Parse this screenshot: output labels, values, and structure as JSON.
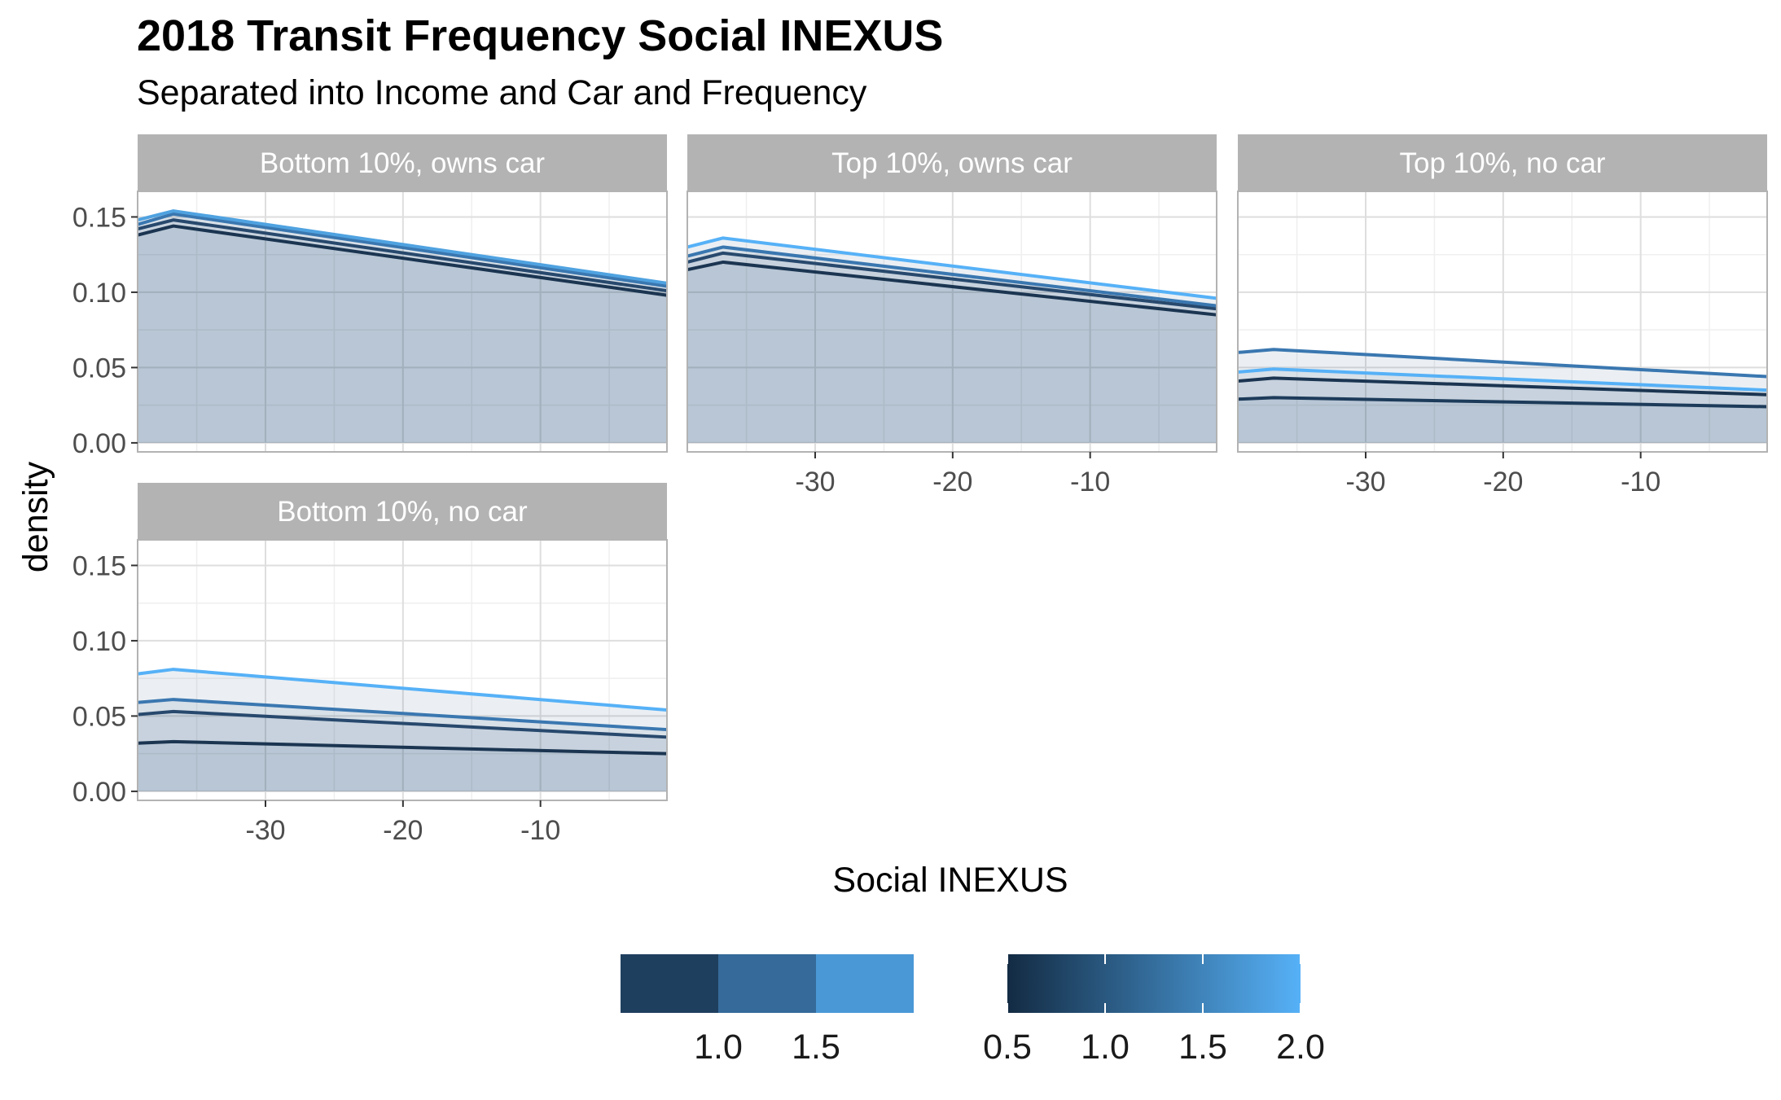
{
  "chart_data": {
    "type": "area",
    "title": "2018 Transit Frequency Social INEXUS",
    "subtitle": "Separated into Income and Car and Frequency",
    "xlabel": "Social INEXUS",
    "ylabel": "density",
    "xlim": [
      -39.3,
      -0.8
    ],
    "ylim": [
      -0.006,
      0.167
    ],
    "x_ticks": [
      -30,
      -20,
      -10
    ],
    "x_tick_labels": [
      "-30",
      "-20",
      "-10"
    ],
    "y_ticks": [
      0,
      0.05,
      0.1,
      0.15
    ],
    "y_tick_labels": [
      "0.00",
      "0.05",
      "0.10",
      "0.15"
    ],
    "grid": true,
    "x_points": [
      -39.3,
      -36.7,
      -0.8
    ],
    "panels": [
      {
        "label": "Bottom 10%, owns car",
        "series": [
          {
            "color": "#1b3551",
            "values": [
              0.138,
              0.144,
              0.098
            ]
          },
          {
            "color": "#28496d",
            "values": [
              0.142,
              0.148,
              0.101
            ]
          },
          {
            "color": "#3a77b0",
            "values": [
              0.145,
              0.152,
              0.104
            ]
          },
          {
            "color": "#4fa2e0",
            "values": [
              0.148,
              0.154,
              0.106
            ]
          }
        ]
      },
      {
        "label": "Top 10%, owns car",
        "series": [
          {
            "color": "#1b3551",
            "values": [
              0.115,
              0.12,
              0.085
            ]
          },
          {
            "color": "#28496d",
            "values": [
              0.12,
              0.126,
              0.089
            ]
          },
          {
            "color": "#3a77b0",
            "values": [
              0.124,
              0.13,
              0.091
            ]
          },
          {
            "color": "#56b1f7",
            "values": [
              0.13,
              0.136,
              0.096
            ]
          }
        ]
      },
      {
        "label": "Top 10%, no car",
        "series": [
          {
            "color": "#1d3b5a",
            "values": [
              0.029,
              0.03,
              0.024
            ]
          },
          {
            "color": "#1b3551",
            "values": [
              0.041,
              0.043,
              0.032
            ]
          },
          {
            "color": "#56b1f7",
            "values": [
              0.047,
              0.049,
              0.035
            ]
          },
          {
            "color": "#3a77b0",
            "values": [
              0.06,
              0.062,
              0.044
            ]
          }
        ]
      },
      {
        "label": "Bottom 10%, no car",
        "series": [
          {
            "color": "#1b3551",
            "values": [
              0.032,
              0.033,
              0.025
            ]
          },
          {
            "color": "#28496d",
            "values": [
              0.051,
              0.053,
              0.036
            ]
          },
          {
            "color": "#3a77b0",
            "values": [
              0.059,
              0.061,
              0.041
            ]
          },
          {
            "color": "#56b1f7",
            "values": [
              0.078,
              0.081,
              0.054
            ]
          }
        ]
      }
    ],
    "legend_fill": {
      "colors": [
        "#1f3f5f",
        "#356a9a",
        "#4a98d6"
      ],
      "labels": [
        "1.0",
        "1.5"
      ]
    },
    "legend_colour": {
      "gradient": [
        "#132b43",
        "#56b1f7"
      ],
      "labels": [
        "0.5",
        "1.0",
        "1.5",
        "2.0"
      ]
    },
    "colors": {
      "strip": "#b3b3b3",
      "grid_major": "#dedede",
      "grid_minor": "#efefef",
      "panel_border": "#b3b3b3",
      "fill": "#23517f"
    }
  }
}
